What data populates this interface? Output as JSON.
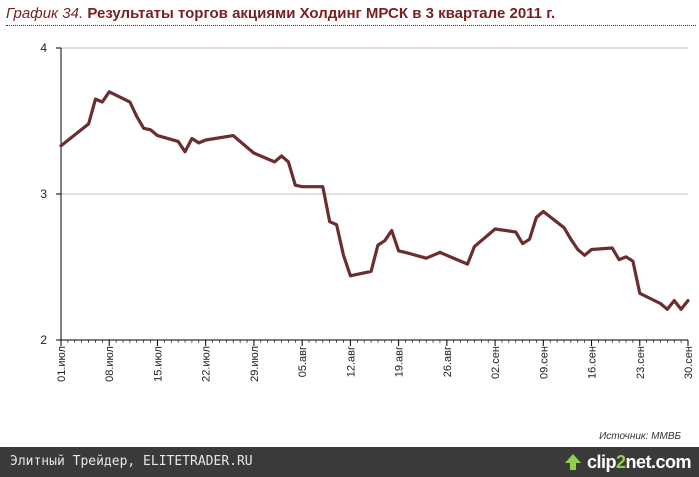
{
  "header": {
    "title_prefix": "График 34.",
    "title_main": "Результаты торгов акциями Холдинг МРСК в 3 квартале 2011 г."
  },
  "source_text": "Источник: ММВБ",
  "footer": {
    "site_text": "Элитный Трейдер, ELITETRADER.RU",
    "logo_text_a": "clip",
    "logo_text_b": "2",
    "logo_text_c": "net.com"
  },
  "colors": {
    "line": "#6b2d2d",
    "axis": "#000000",
    "grid": "#c0c0c0",
    "title": "#7a1f1f"
  },
  "chart_data": {
    "type": "line",
    "title": "Результаты торгов акциями Холдинг МРСК в 3 квартале 2011 г.",
    "xlabel": "",
    "ylabel": "",
    "ylim": [
      2,
      4
    ],
    "yticks": [
      2,
      3,
      4
    ],
    "grid": "horizontal",
    "x_ticks": [
      "01.июл",
      "08.июл",
      "15.июл",
      "22.июл",
      "29.июл",
      "05.авг",
      "12.авг",
      "19.авг",
      "26.авг",
      "02.сен",
      "09.сен",
      "16.сен",
      "23.сен",
      "30.сен"
    ],
    "series": [
      {
        "name": "Холдинг МРСК",
        "x": [
          0,
          4,
          5,
          6,
          7,
          10,
          11,
          12,
          13,
          14,
          17,
          18,
          19,
          20,
          21,
          25,
          27,
          28,
          31,
          32,
          33,
          34,
          35,
          38,
          39,
          40,
          41,
          42,
          43,
          45,
          46,
          47,
          48,
          49,
          50,
          53,
          54,
          55,
          56,
          59,
          60,
          61,
          62,
          63,
          66,
          67,
          68,
          69,
          70,
          73,
          74,
          75,
          76,
          77,
          80,
          81,
          82,
          83,
          84,
          87,
          88,
          89,
          90,
          91
        ],
        "values": [
          3.33,
          3.48,
          3.65,
          3.63,
          3.7,
          3.63,
          3.53,
          3.45,
          3.44,
          3.4,
          3.36,
          3.29,
          3.38,
          3.35,
          3.37,
          3.4,
          3.32,
          3.28,
          3.22,
          3.26,
          3.22,
          3.06,
          3.05,
          3.05,
          2.81,
          2.79,
          2.58,
          2.44,
          2.45,
          2.47,
          2.65,
          2.68,
          2.75,
          2.61,
          2.6,
          2.56,
          2.58,
          2.6,
          2.58,
          2.52,
          2.64,
          2.68,
          2.72,
          2.76,
          2.74,
          2.66,
          2.69,
          2.84,
          2.88,
          2.77,
          2.69,
          2.62,
          2.58,
          2.62,
          2.63,
          2.55,
          2.57,
          2.54,
          2.32,
          2.25,
          2.21,
          2.27,
          2.21,
          2.27
        ]
      }
    ]
  }
}
